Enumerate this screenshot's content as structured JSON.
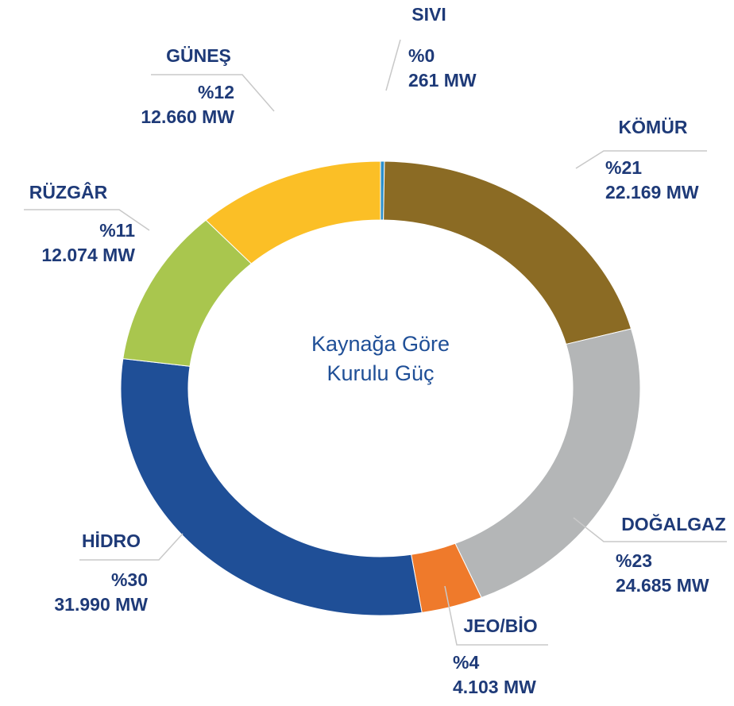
{
  "chart_data": {
    "type": "donut",
    "title_lines": [
      "Kaynağa Göre",
      "Kurulu Güç"
    ],
    "categories": [
      "SIVI",
      "KÖMÜR",
      "DOĞALGAZ",
      "JEO/BİO",
      "HİDRO",
      "RÜZGÂR",
      "GÜNEŞ"
    ],
    "values": [
      261,
      22169,
      24685,
      4103,
      31990,
      12074,
      12660
    ],
    "value_labels": [
      "261 MW",
      "22.169 MW",
      "24.685 MW",
      "4.103 MW",
      "31.990 MW",
      "12.074 MW",
      "12.660 MW"
    ],
    "percentages": [
      0,
      21,
      23,
      4,
      30,
      11,
      12
    ],
    "percent_labels": [
      "%0",
      "%21",
      "%23",
      "%4",
      "%30",
      "%11",
      "%12"
    ],
    "colors": [
      "#2b8fcb",
      "#8b6b24",
      "#b4b6b7",
      "#ef7a2b",
      "#1f4f97",
      "#a9c64e",
      "#fbbf26"
    ]
  }
}
